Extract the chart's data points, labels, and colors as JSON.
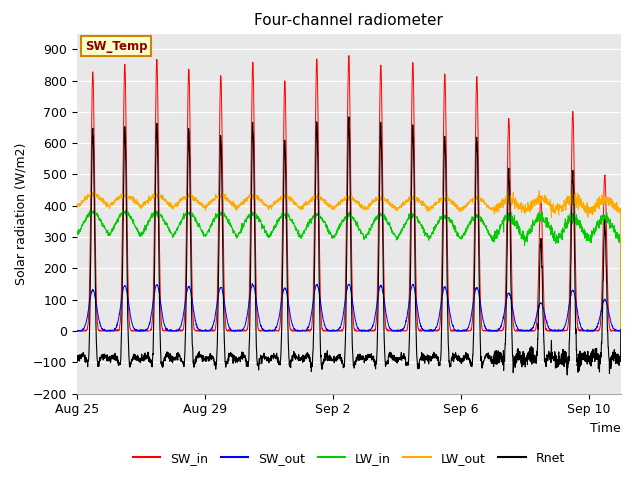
{
  "title": "Four-channel radiometer",
  "xlabel": "Time",
  "ylabel": "Solar radiation (W/m2)",
  "ylim": [
    -200,
    950
  ],
  "yticks": [
    -200,
    -100,
    0,
    100,
    200,
    300,
    400,
    500,
    600,
    700,
    800,
    900
  ],
  "xtick_labels": [
    "Aug 25",
    "Aug 29",
    "Sep 2",
    "Sep 6",
    "Sep 10"
  ],
  "xtick_pos": [
    0,
    4,
    8.0,
    12.0,
    16.0
  ],
  "n_days": 17,
  "colors": {
    "SW_in": "#ff0000",
    "SW_out": "#0000ff",
    "LW_in": "#00cc00",
    "LW_out": "#ffaa00",
    "Rnet": "#000000"
  },
  "bg_color": "#e8e8e8",
  "annotation_text": "SW_Temp",
  "annotation_bg": "#ffffcc",
  "annotation_border": "#cc8800",
  "annotation_text_color": "#880000"
}
